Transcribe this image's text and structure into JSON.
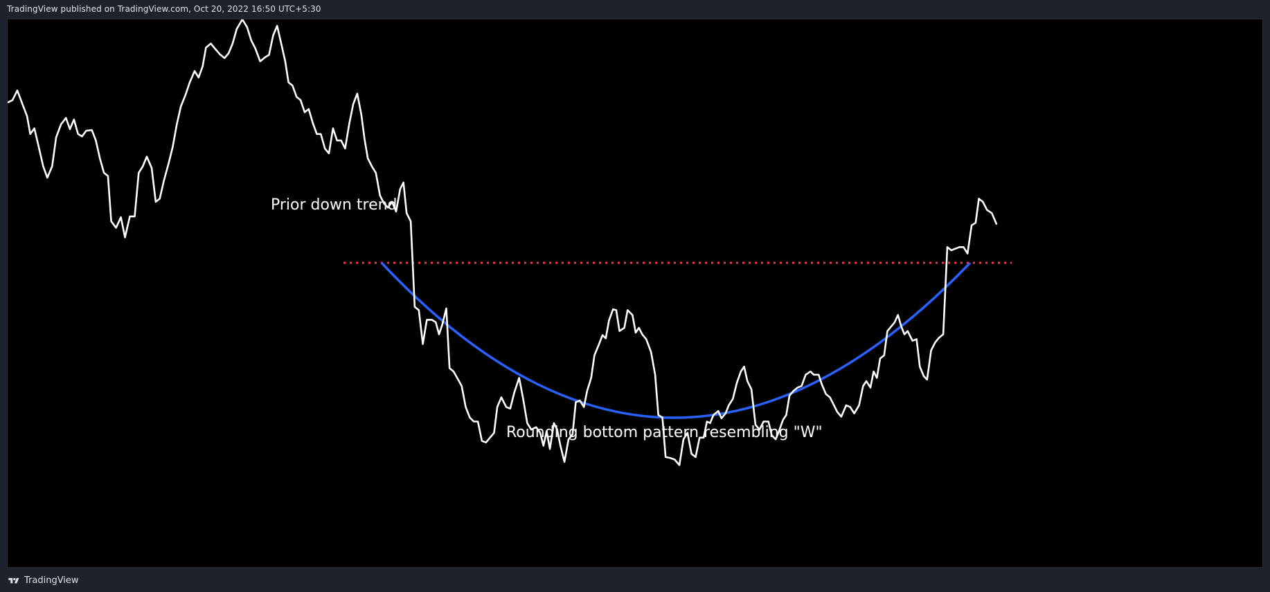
{
  "header": {
    "published_text": "TradingView published on TradingView.com, Oct 20, 2022 16:50 UTC+5:30"
  },
  "footer": {
    "brand": "TradingView",
    "logo_icon": "tradingview-logo-icon"
  },
  "colors": {
    "background": "#000000",
    "frame": "#1e222d",
    "price_line": "#ffffff",
    "neckline": "#f23645",
    "rounding_curve": "#2962ff"
  },
  "chart_data": {
    "type": "line",
    "title": "",
    "xlabel": "",
    "ylabel": "",
    "grid": false,
    "legend": "none",
    "annotations": {
      "prior_trend": "Prior down trend",
      "pattern": "Rounding bottom pattern resembling \"W\""
    },
    "series": [
      {
        "values": [
          129,
          131,
          114,
          129,
          149,
          165,
          155,
          168,
          194,
          186,
          211,
          225,
          209,
          172,
          166,
          178,
          171,
          172,
          178,
          191,
          195,
          184,
          169,
          169,
          180,
          206,
          224,
          239,
          251,
          254,
          271,
          282,
          325,
          325,
          337,
          318,
          316,
          333,
          344,
          342,
          348,
          333,
          317,
          302,
          302,
          278,
          261,
          257,
          245,
          242,
          253,
          262,
          288,
          302,
          316,
          325,
          327,
          319,
          316,
          320,
          335,
          342,
          349,
          339,
          322,
          316,
          322,
          337,
          353,
          366,
          388,
          407,
          434,
          476,
          504,
          537,
          552,
          566,
          589,
          611,
          634,
          652,
          664,
          675,
          688,
          691,
          708,
          714,
          730,
          735,
          744,
          753,
          766,
          793,
          822,
          857,
          867,
          871,
          867,
          873,
          894,
          902,
          916,
          921,
          940,
          956,
          974,
          984,
          999,
          1013,
          1038,
          1047,
          1081,
          1091,
          1101,
          1126,
          1152,
          1176,
          1207,
          1213,
          1188,
          1164,
          1199,
          1188,
          1202,
          1238,
          1247,
          1259,
          1261,
          1280,
          1278,
          1272,
          1278,
          1288,
          1301,
          1313,
          1324,
          1331,
          1342,
          1358,
          1369,
          1385,
          1395,
          1405,
          1408,
          1410,
          1432,
          1450,
          1461,
          1473,
          1475,
          1472,
          1486,
          1500,
          1518,
          1524,
          1536,
          1541,
          1554,
          1563,
          1573,
          1579,
          1581,
          1584,
          1588,
          1599,
          1614,
          1626,
          1653,
          1677,
          1694,
          1710,
          1717,
          1725,
          1738,
          1741,
          1754,
          1763,
          1780,
          1786,
          1794,
          1801,
          1814,
          1830,
          1834,
          1852,
          1853,
          1859,
          1861,
          1870,
          1875,
          1876,
          1879,
          1877,
          1883,
          1896,
          1913,
          1931,
          1939,
          1947,
          1958,
          1969,
          1976,
          1983,
          1987,
          1998,
          2006,
          2021,
          2034,
          2047,
          2054,
          2062,
          2072,
          2087,
          2096,
          2106,
          2116,
          2119,
          2124,
          2136,
          2147,
          2159,
          2177,
          2182,
          2192,
          2202,
          2211,
          2222,
          2232,
          2242,
          2245,
          2255,
          2267,
          2276,
          2289,
          2300,
          2322,
          2337,
          2352,
          2364,
          2383,
          2393,
          2400,
          2416,
          2425,
          2436,
          2451,
          2472,
          2481,
          2494,
          2505,
          2524,
          2539,
          2541,
          2549,
          2558,
          2575,
          2593,
          2601,
          2620,
          2630,
          2641,
          2648,
          2659,
          2669,
          2680,
          2697,
          2718,
          2726
        ]
      }
    ]
  }
}
